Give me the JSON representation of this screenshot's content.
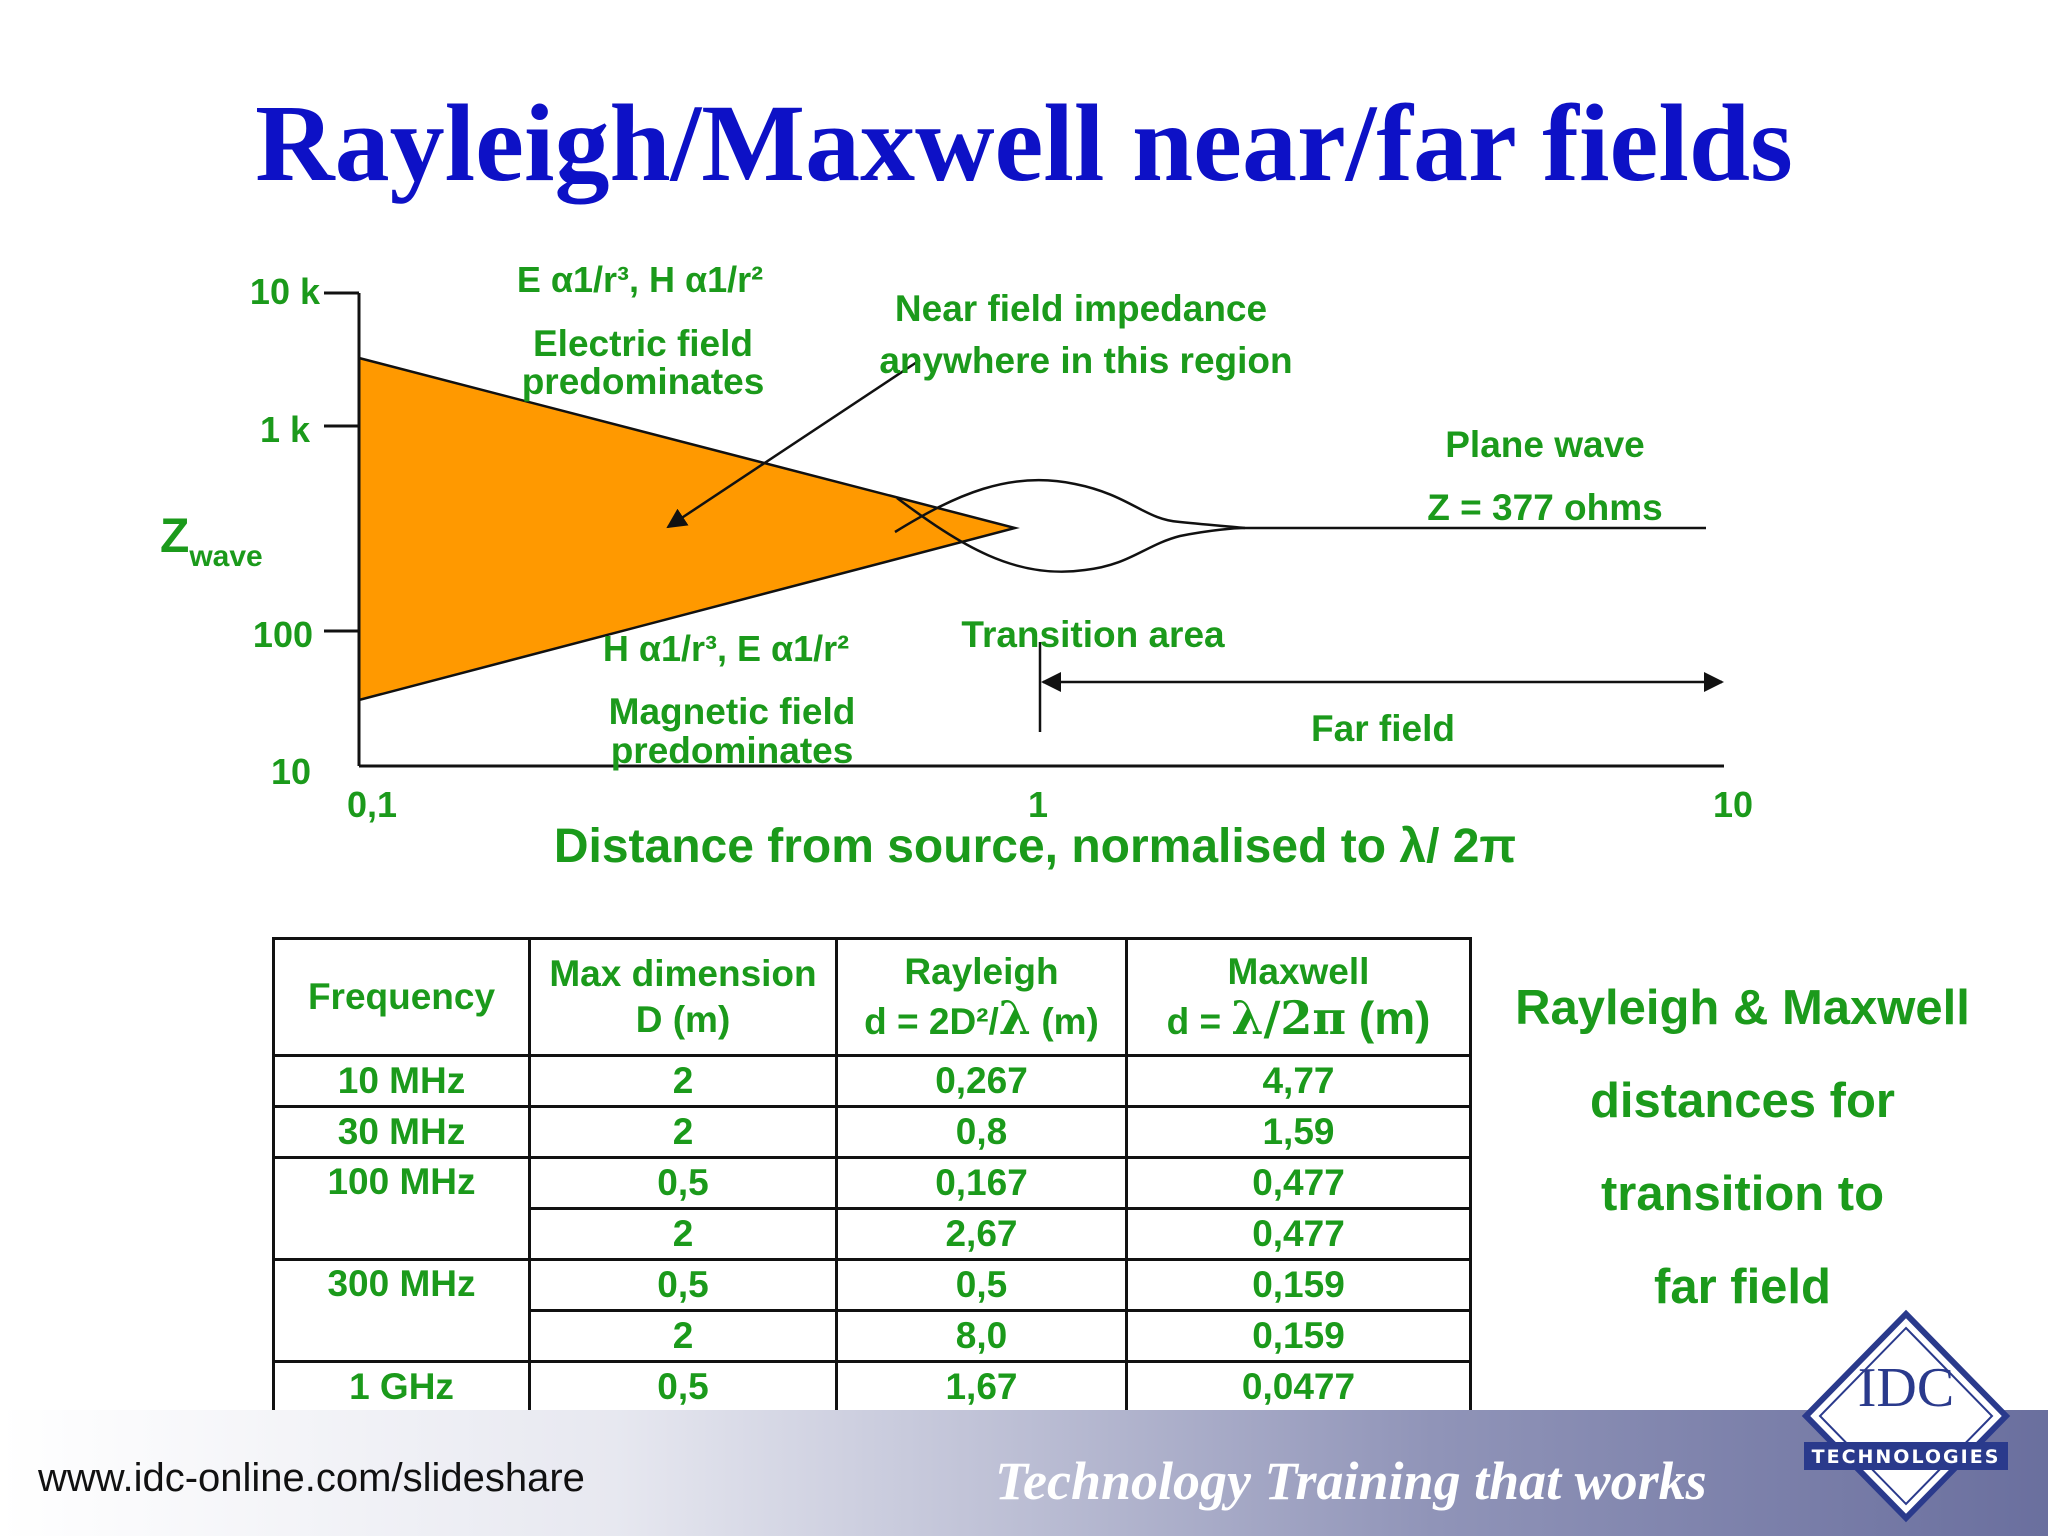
{
  "title": "Rayleigh/Maxwell near/far fields",
  "diagram": {
    "y_axis_label_main": "Z",
    "y_axis_label_sub": "wave",
    "y_ticks": [
      "10 k",
      "1 k",
      "100",
      "10"
    ],
    "x_ticks": [
      "0,1",
      "1",
      "10"
    ],
    "x_axis_label": "Distance from source, normalised to λ/ 2π",
    "upper_formula": "E α1/r³,  H α1/r²",
    "upper_text_line1": "Electric field",
    "upper_text_line2": "predominates",
    "near_impedance_line1": "Near field impedance",
    "near_impedance_line2": "anywhere in this region",
    "plane_wave": "Plane wave",
    "plane_wave_z": "Z = 377 ohms",
    "transition": "Transition area",
    "lower_formula": "H α1/r³,  E α1/r²",
    "lower_text_line1": "Magnetic field",
    "lower_text_line2": "predominates",
    "far_field": "Far field",
    "fill_color": "#ff9900",
    "text_color": "#1b9a1b"
  },
  "table": {
    "headers": {
      "frequency": "Frequency",
      "max_dim_line1": "Max dimension",
      "max_dim_line2": "D (m)",
      "rayleigh_line1": "Rayleigh",
      "rayleigh_line2_pre": "d = 2D²/",
      "rayleigh_lambda": "λ",
      "rayleigh_line2_post": " (m)",
      "maxwell_line1": "Maxwell",
      "maxwell_line2_pre": "d = ",
      "maxwell_formula": "λ/2π",
      "maxwell_line2_post": " (m)"
    },
    "rows": [
      {
        "frequency": "10 MHz",
        "d": "2",
        "rayleigh": "0,267",
        "maxwell": "4,77"
      },
      {
        "frequency": "30 MHz",
        "d": "2",
        "rayleigh": "0,8",
        "maxwell": "1,59"
      },
      {
        "frequency": "100 MHz",
        "d": "0,5",
        "rayleigh": "0,167",
        "maxwell": "0,477"
      },
      {
        "frequency": "",
        "d": "2",
        "rayleigh": "2,67",
        "maxwell": "0,477"
      },
      {
        "frequency": "300 MHz",
        "d": "0,5",
        "rayleigh": "0,5",
        "maxwell": "0,159"
      },
      {
        "frequency": "",
        "d": "2",
        "rayleigh": "8,0",
        "maxwell": "0,159"
      },
      {
        "frequency": "1 GHz",
        "d": "0,5",
        "rayleigh": "1,67",
        "maxwell": "0,0477"
      }
    ]
  },
  "side_caption": [
    "Rayleigh & Maxwell",
    "distances for",
    "transition to",
    "far field"
  ],
  "footer": {
    "url": "www.idc-online.com/slideshare",
    "tagline": "Technology Training that works",
    "logo_main": "IDC",
    "logo_sub": "TECHNOLOGIES"
  }
}
